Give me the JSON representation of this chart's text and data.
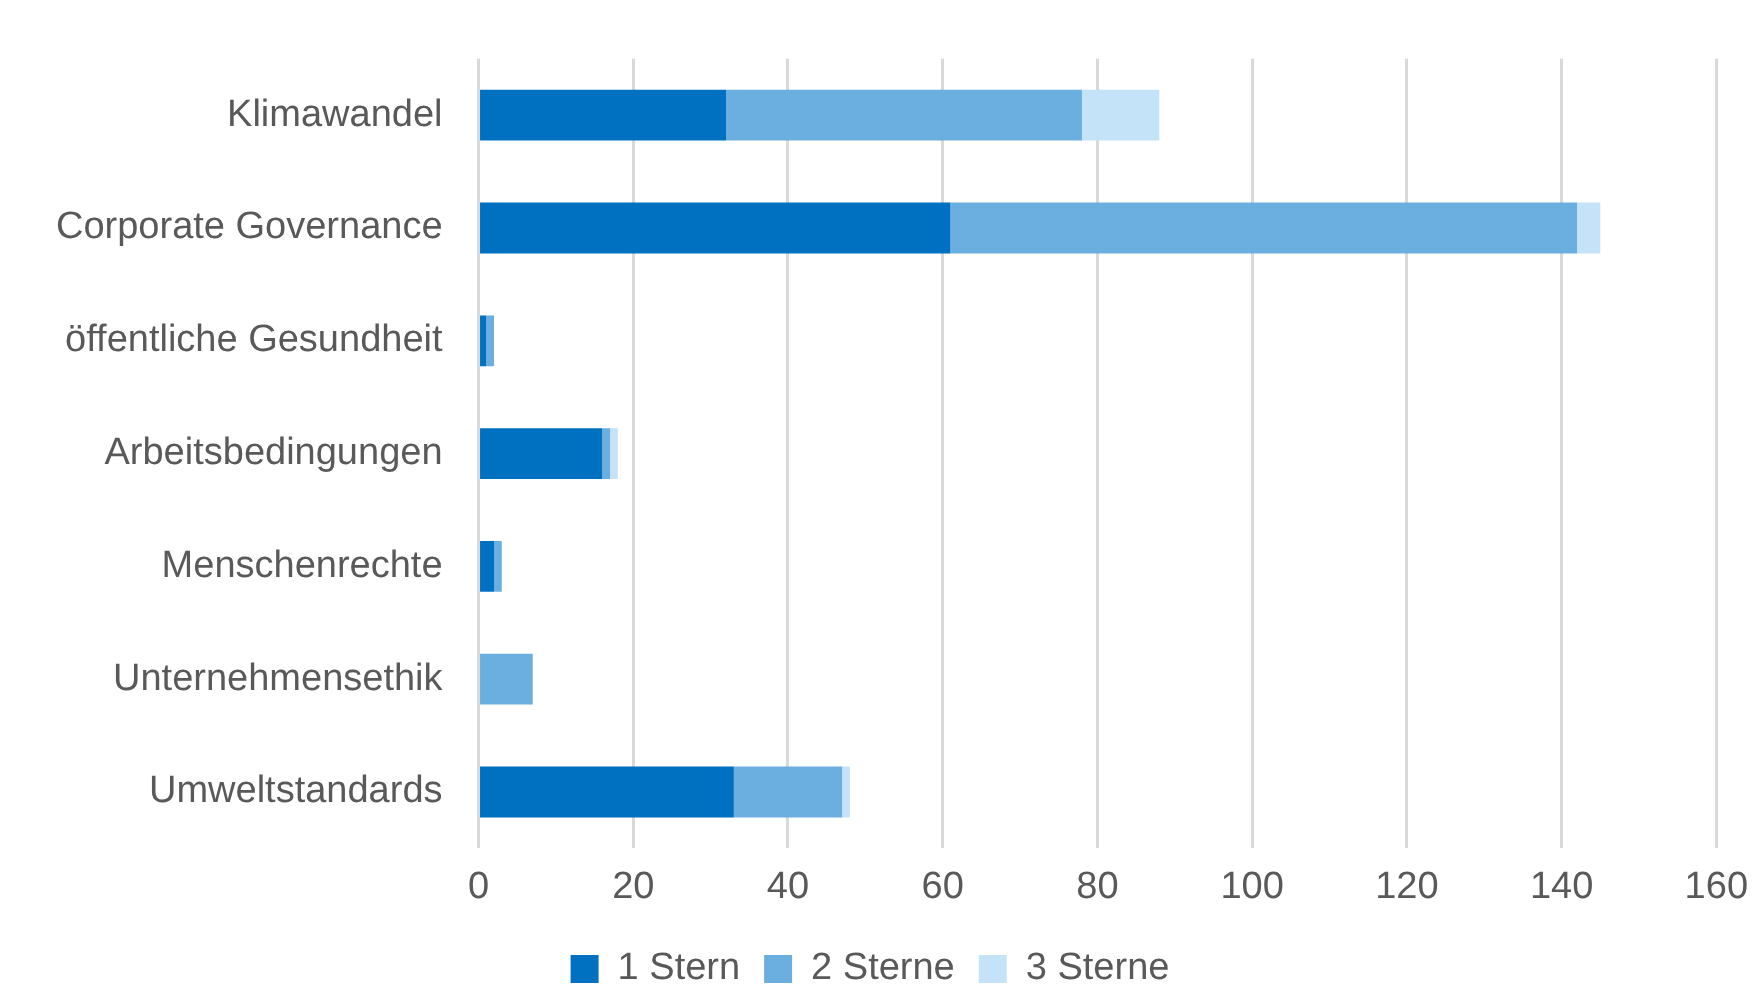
{
  "chart_data": {
    "type": "bar",
    "orientation": "horizontal",
    "stacked": true,
    "categories": [
      "Klimawandel",
      "Corporate Governance",
      "öffentliche Gesundheit",
      "Arbeitsbedingungen",
      "Menschenrechte",
      "Unternehmensethik",
      "Umweltstandards"
    ],
    "series": [
      {
        "name": "1 Stern",
        "color": "#0070c0",
        "values": [
          32,
          61,
          1,
          16,
          2,
          0,
          33
        ]
      },
      {
        "name": "2 Sterne",
        "color": "#6aafdf",
        "values": [
          46,
          81,
          1,
          1,
          1,
          7,
          14
        ]
      },
      {
        "name": "3 Sterne",
        "color": "#c4e3f8",
        "values": [
          10,
          3,
          0,
          1,
          0,
          0,
          1
        ]
      }
    ],
    "xlim": [
      0,
      160
    ],
    "xticks": [
      0,
      20,
      40,
      60,
      80,
      100,
      120,
      140,
      160
    ],
    "grid": "x",
    "legend": "bottom"
  }
}
